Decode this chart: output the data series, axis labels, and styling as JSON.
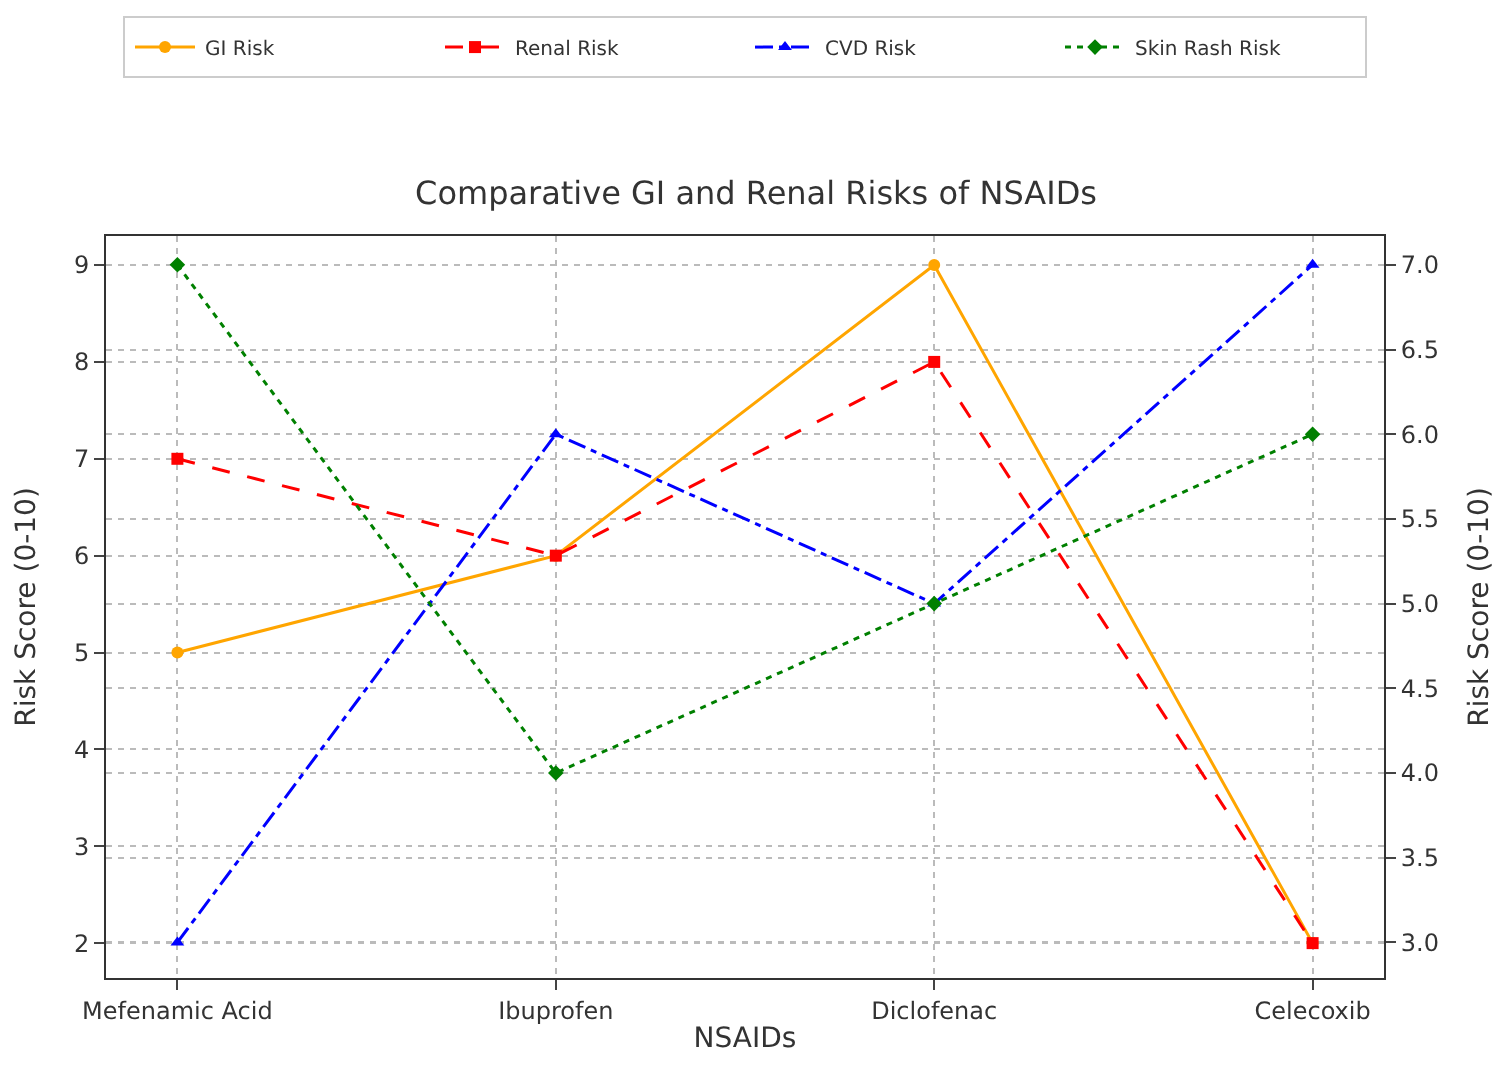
{
  "chart_data": {
    "type": "line",
    "title": "Comparative GI and Renal Risks of NSAIDs",
    "xlabel": "NSAIDs",
    "ylabel": "Risk Score (0-10)",
    "y2label": "Risk Score (0-10)",
    "categories": [
      "Mefenamic Acid",
      "Ibuprofen",
      "Diclofenac",
      "Celecoxib"
    ],
    "series": [
      {
        "name": "GI Risk",
        "color": "#ffa500",
        "values": [
          5,
          6,
          9,
          2
        ],
        "marker": "circle",
        "line_style": "solid"
      },
      {
        "name": "Renal Risk",
        "color": "#ff0000",
        "values": [
          7,
          6,
          8,
          2
        ],
        "marker": "square",
        "line_style": "dashed"
      },
      {
        "name": "CVD Risk",
        "color": "#0000ff",
        "values": [
          3.0,
          6.0,
          5.0,
          7.0
        ],
        "marker": "triangle",
        "line_style": "dashdot",
        "axis": "y2"
      },
      {
        "name": "Skin Rash Risk",
        "color": "#008000",
        "values": [
          7.0,
          4.0,
          5.0,
          6.0
        ],
        "marker": "diamond",
        "line_style": "dotted",
        "axis": "y2"
      }
    ],
    "ylim": [
      1.64,
      9.3
    ],
    "yticks": [
      2,
      3,
      4,
      5,
      6,
      7,
      8,
      9
    ],
    "y2lim": [
      2.79,
      7.17
    ],
    "y2ticks": [
      {
        "value": 3,
        "label": "3.0"
      },
      {
        "value": 3.5,
        "label": "3.5"
      },
      {
        "value": 4,
        "label": "4.0"
      },
      {
        "value": 4.5,
        "label": "4.5"
      },
      {
        "value": 5,
        "label": "5.0"
      },
      {
        "value": 5.5,
        "label": "5.5"
      },
      {
        "value": 6,
        "label": "6.0"
      },
      {
        "value": 6.5,
        "label": "6.5"
      },
      {
        "value": 7,
        "label": "7.0"
      }
    ],
    "grid": true,
    "legend": "top"
  }
}
